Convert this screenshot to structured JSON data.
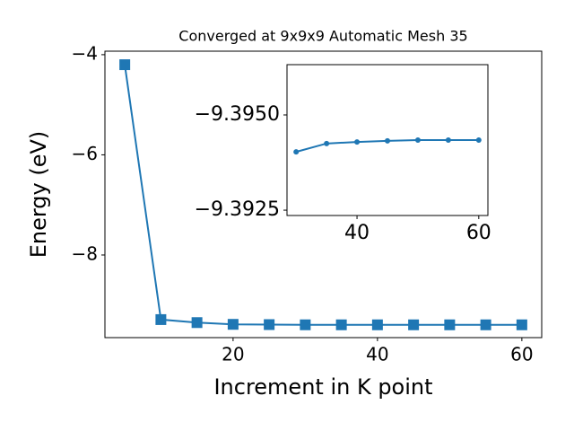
{
  "chart_data": [
    {
      "type": "line",
      "title": "Converged at 9x9x9 Automatic Mesh 35",
      "x_label": "Increment in K point",
      "y_label": "Energy (eV)",
      "x": [
        5,
        10,
        15,
        20,
        25,
        30,
        35,
        40,
        45,
        50,
        55,
        60
      ],
      "series": [
        {
          "color": "#1f77b4",
          "marker": "square",
          "values": [
            -4.2,
            -9.29,
            -9.35,
            -9.385,
            -9.39,
            -9.39403,
            -9.39425,
            -9.39429,
            -9.39432,
            -9.39434,
            -9.39434,
            -9.39434
          ]
        }
      ],
      "xlim": [
        2.25,
        62.75
      ],
      "xticks": [
        20,
        40,
        60
      ],
      "ylim": [
        -9.65,
        -3.93
      ],
      "yticks": [
        {
          "value": -4,
          "label": "−4"
        },
        {
          "value": -6,
          "label": "−6"
        },
        {
          "value": -8,
          "label": "−8"
        }
      ]
    },
    {
      "type": "line",
      "x": [
        30,
        35,
        40,
        45,
        50,
        55,
        60
      ],
      "series": [
        {
          "color": "#1f77b4",
          "marker": "circle",
          "values": [
            -9.39403,
            -9.39425,
            -9.39429,
            -9.39432,
            -9.39434,
            -9.39434,
            -9.39434
          ]
        }
      ],
      "xlim": [
        28.5,
        61.5
      ],
      "xticks": [
        40,
        60
      ],
      "ylim": [
        -9.39236,
        -9.39632
      ],
      "yticks": [
        {
          "value": -9.395,
          "label": "−9.3950"
        },
        {
          "value": -9.3925,
          "label": "−9.3925"
        }
      ]
    }
  ]
}
